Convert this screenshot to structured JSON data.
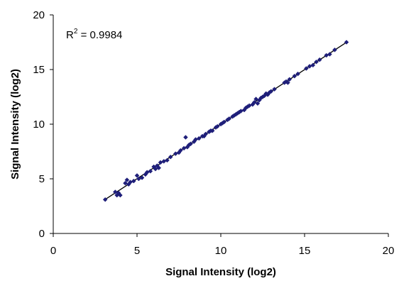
{
  "chart_data": {
    "type": "scatter",
    "xlabel": "Signal Intensity (log2)",
    "ylabel": "Signal Intensity (log2)",
    "xlim": [
      0,
      20
    ],
    "ylim": [
      0,
      20
    ],
    "x_ticks": [
      "0",
      "5",
      "10",
      "15",
      "20"
    ],
    "y_ticks": [
      "0",
      "5",
      "10",
      "15",
      "20"
    ],
    "grid": false,
    "legend": "none",
    "annotation": {
      "prefix": "R",
      "sup": "2",
      "suffix": " = 0.9984"
    },
    "marker_color": "#1f1f7a",
    "trendline": {
      "color": "#000000",
      "x_range": [
        3.1,
        17.5
      ],
      "slope": 0.998,
      "intercept": 0.02
    },
    "points": [
      [
        3.1,
        3.1
      ],
      [
        3.7,
        3.8
      ],
      [
        3.8,
        3.5
      ],
      [
        3.9,
        3.7
      ],
      [
        4.0,
        3.5
      ],
      [
        4.3,
        4.6
      ],
      [
        4.4,
        4.9
      ],
      [
        4.5,
        4.5
      ],
      [
        4.6,
        4.7
      ],
      [
        4.8,
        4.8
      ],
      [
        5.0,
        5.3
      ],
      [
        5.1,
        5.0
      ],
      [
        5.3,
        5.1
      ],
      [
        5.5,
        5.4
      ],
      [
        5.6,
        5.6
      ],
      [
        5.8,
        5.7
      ],
      [
        6.0,
        6.1
      ],
      [
        6.1,
        5.9
      ],
      [
        6.2,
        6.2
      ],
      [
        6.3,
        6.0
      ],
      [
        6.4,
        6.5
      ],
      [
        6.6,
        6.6
      ],
      [
        6.8,
        6.7
      ],
      [
        7.0,
        7.0
      ],
      [
        7.3,
        7.3
      ],
      [
        7.5,
        7.4
      ],
      [
        7.6,
        7.6
      ],
      [
        7.8,
        7.8
      ],
      [
        7.9,
        8.8
      ],
      [
        8.0,
        7.9
      ],
      [
        8.1,
        8.1
      ],
      [
        8.2,
        8.2
      ],
      [
        8.4,
        8.4
      ],
      [
        8.5,
        8.6
      ],
      [
        8.7,
        8.7
      ],
      [
        8.9,
        8.9
      ],
      [
        9.0,
        8.9
      ],
      [
        9.1,
        9.1
      ],
      [
        9.3,
        9.3
      ],
      [
        9.4,
        9.4
      ],
      [
        9.5,
        9.4
      ],
      [
        9.7,
        9.7
      ],
      [
        9.8,
        9.8
      ],
      [
        10.0,
        10.0
      ],
      [
        10.1,
        10.1
      ],
      [
        10.2,
        10.2
      ],
      [
        10.4,
        10.4
      ],
      [
        10.5,
        10.5
      ],
      [
        10.7,
        10.7
      ],
      [
        10.8,
        10.8
      ],
      [
        10.9,
        10.9
      ],
      [
        11.0,
        11.0
      ],
      [
        11.1,
        11.1
      ],
      [
        11.2,
        11.2
      ],
      [
        11.4,
        11.3
      ],
      [
        11.5,
        11.5
      ],
      [
        11.6,
        11.6
      ],
      [
        11.7,
        11.7
      ],
      [
        11.9,
        11.8
      ],
      [
        12.0,
        12.0
      ],
      [
        12.1,
        12.3
      ],
      [
        12.2,
        11.9
      ],
      [
        12.3,
        12.2
      ],
      [
        12.4,
        12.4
      ],
      [
        12.5,
        12.5
      ],
      [
        12.6,
        12.6
      ],
      [
        12.7,
        12.8
      ],
      [
        12.8,
        12.7
      ],
      [
        12.9,
        12.9
      ],
      [
        13.0,
        13.0
      ],
      [
        13.2,
        13.2
      ],
      [
        13.8,
        13.8
      ],
      [
        13.9,
        13.9
      ],
      [
        14.0,
        13.8
      ],
      [
        14.1,
        14.1
      ],
      [
        14.4,
        14.4
      ],
      [
        14.6,
        14.6
      ],
      [
        15.1,
        15.1
      ],
      [
        15.3,
        15.3
      ],
      [
        15.5,
        15.4
      ],
      [
        15.7,
        15.7
      ],
      [
        15.9,
        15.9
      ],
      [
        16.3,
        16.3
      ],
      [
        16.5,
        16.4
      ],
      [
        16.8,
        16.8
      ],
      [
        17.5,
        17.5
      ]
    ]
  }
}
